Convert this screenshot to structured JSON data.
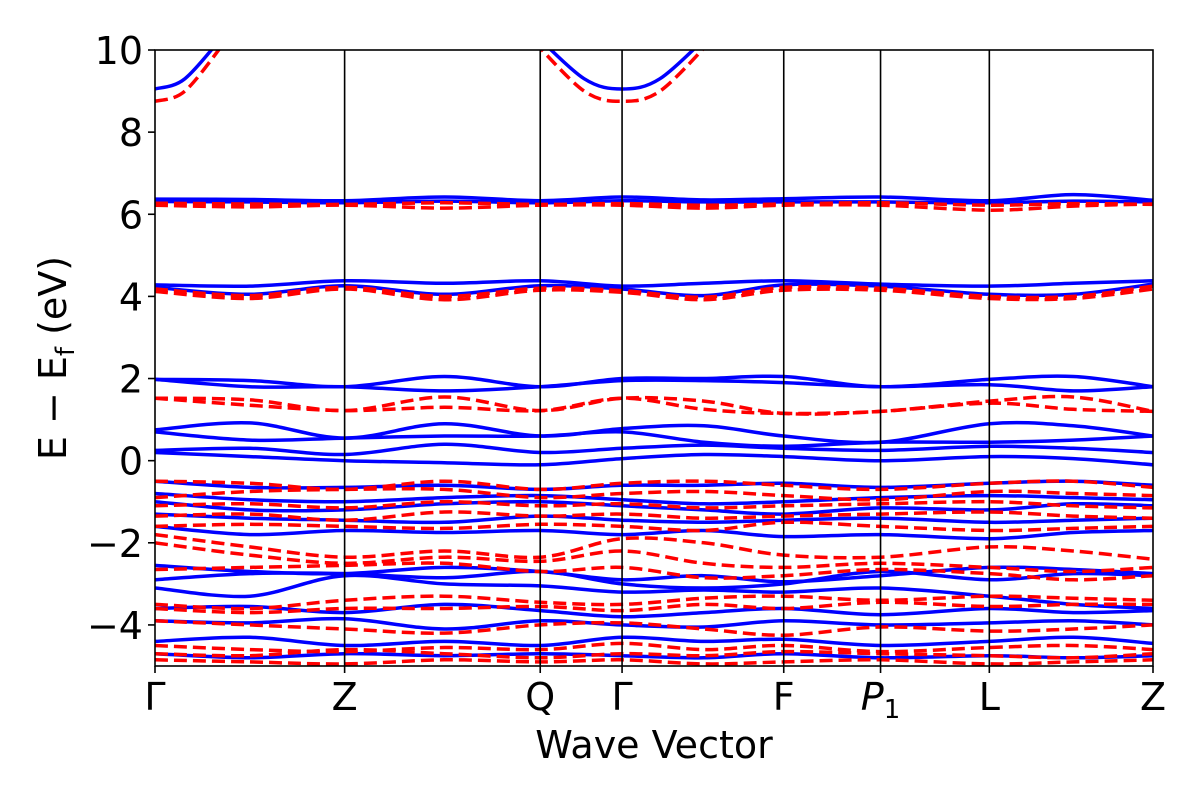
{
  "chart_data": {
    "type": "line",
    "title": "",
    "xlabel": "Wave Vector",
    "ylabel_parts": {
      "main": "E − E",
      "sub": "f",
      "unit": " (eV)"
    },
    "ylim": [
      -5,
      10
    ],
    "yticks": [
      10,
      8,
      6,
      4,
      2,
      0,
      -2,
      -4
    ],
    "ytick_labels": [
      "10",
      "8",
      "6",
      "4",
      "2",
      "0",
      "−2",
      "−4"
    ],
    "xlim": [
      0,
      1
    ],
    "kpoints": [
      {
        "label": "Γ",
        "x": 0.0
      },
      {
        "label": "Z",
        "x": 0.19
      },
      {
        "label": "Q",
        "x": 0.386
      },
      {
        "label": "Γ",
        "x": 0.468
      },
      {
        "label": "F",
        "x": 0.63
      },
      {
        "label": "P",
        "sub": "1",
        "italic": true,
        "x": 0.727
      },
      {
        "label": "L",
        "x": 0.836
      },
      {
        "label": "Z",
        "x": 1.0
      }
    ],
    "grid": false,
    "legend": "none",
    "styles": {
      "spin_up": {
        "color": "#0000ff",
        "dash": "solid"
      },
      "spin_down": {
        "color": "#ff0000",
        "dash": "dashed"
      }
    },
    "series": [
      {
        "style": "spin_up",
        "y": [
          9.05,
          9.3,
          10.4
        ]
      },
      {
        "style": "spin_down",
        "y": [
          8.75,
          9.0,
          10.2
        ]
      },
      {
        "style": "spin_up",
        "y": [
          10.4,
          9.3,
          9.05,
          9.3,
          10.4
        ]
      },
      {
        "style": "spin_down",
        "y": [
          10.2,
          9.0,
          8.75,
          9.0,
          10.2
        ]
      },
      {
        "style": "spin_up",
        "y": [
          6.37,
          6.36,
          6.33,
          6.42,
          6.33,
          6.42,
          6.35,
          6.38,
          6.42,
          6.33,
          6.48,
          6.34
        ]
      },
      {
        "style": "spin_up",
        "y": [
          6.31,
          6.3,
          6.28,
          6.32,
          6.28,
          6.33,
          6.3,
          6.3,
          6.3,
          6.28,
          6.32,
          6.3
        ]
      },
      {
        "style": "spin_down",
        "y": [
          6.27,
          6.25,
          6.24,
          6.28,
          6.24,
          6.26,
          6.22,
          6.25,
          6.28,
          6.22,
          6.26,
          6.24
        ]
      },
      {
        "style": "spin_down",
        "y": [
          6.22,
          6.18,
          6.22,
          6.15,
          6.22,
          6.22,
          6.15,
          6.22,
          6.22,
          6.1,
          6.2,
          6.25
        ]
      },
      {
        "style": "spin_up",
        "y": [
          4.28,
          4.25,
          4.38,
          4.32,
          4.38,
          4.25,
          4.32,
          4.38,
          4.3,
          4.25,
          4.32,
          4.38
        ]
      },
      {
        "style": "spin_up",
        "y": [
          4.22,
          4.05,
          4.26,
          4.05,
          4.26,
          4.18,
          4.02,
          4.28,
          4.25,
          4.05,
          4.05,
          4.3
        ]
      },
      {
        "style": "spin_down",
        "y": [
          4.18,
          4.02,
          4.22,
          4.0,
          4.2,
          4.14,
          3.98,
          4.22,
          4.2,
          4.0,
          4.0,
          4.25
        ]
      },
      {
        "style": "spin_down",
        "y": [
          4.12,
          3.95,
          4.18,
          3.92,
          4.15,
          4.1,
          3.92,
          4.15,
          4.15,
          3.95,
          3.95,
          4.18
        ]
      },
      {
        "style": "spin_up",
        "y": [
          1.98,
          1.95,
          1.8,
          2.05,
          1.8,
          2.0,
          2.0,
          2.05,
          1.8,
          1.98,
          2.05,
          1.8
        ]
      },
      {
        "style": "spin_up",
        "y": [
          1.98,
          1.8,
          1.8,
          1.7,
          1.8,
          1.95,
          1.95,
          1.9,
          1.8,
          1.85,
          1.7,
          1.8
        ]
      },
      {
        "style": "spin_down",
        "y": [
          1.52,
          1.48,
          1.22,
          1.55,
          1.22,
          1.52,
          1.45,
          1.15,
          1.2,
          1.45,
          1.55,
          1.2
        ]
      },
      {
        "style": "spin_down",
        "y": [
          1.52,
          1.35,
          1.22,
          1.3,
          1.22,
          1.52,
          1.25,
          1.15,
          1.2,
          1.4,
          1.25,
          1.2
        ]
      },
      {
        "style": "spin_up",
        "y": [
          0.75,
          0.92,
          0.55,
          0.9,
          0.6,
          0.78,
          0.85,
          0.6,
          0.45,
          0.9,
          0.85,
          0.6
        ]
      },
      {
        "style": "spin_up",
        "y": [
          0.7,
          0.5,
          0.55,
          0.6,
          0.6,
          0.7,
          0.45,
          0.35,
          0.45,
          0.45,
          0.5,
          0.6
        ]
      },
      {
        "style": "spin_up",
        "y": [
          0.25,
          0.3,
          0.15,
          0.4,
          0.2,
          0.3,
          0.38,
          0.3,
          0.25,
          0.35,
          0.3,
          0.2
        ]
      },
      {
        "style": "spin_up",
        "y": [
          0.2,
          0.1,
          0.0,
          -0.05,
          -0.1,
          0.05,
          0.15,
          0.1,
          0.0,
          0.1,
          0.05,
          -0.1
        ]
      },
      {
        "style": "spin_up",
        "y": [
          -0.5,
          -0.65,
          -0.65,
          -0.6,
          -0.7,
          -0.6,
          -0.6,
          -0.55,
          -0.65,
          -0.55,
          -0.5,
          -0.6
        ]
      },
      {
        "style": "spin_up",
        "y": [
          -0.8,
          -0.95,
          -1.0,
          -0.9,
          -0.85,
          -0.95,
          -1.05,
          -1.0,
          -0.9,
          -0.85,
          -0.9,
          -0.95
        ]
      },
      {
        "style": "spin_up",
        "y": [
          -1.0,
          -1.2,
          -1.2,
          -1.05,
          -1.0,
          -1.1,
          -1.2,
          -1.3,
          -1.15,
          -1.2,
          -1.05,
          -1.1
        ]
      },
      {
        "style": "spin_up",
        "y": [
          -1.3,
          -1.4,
          -1.45,
          -1.5,
          -1.35,
          -1.45,
          -1.5,
          -1.45,
          -1.4,
          -1.5,
          -1.45,
          -1.4
        ]
      },
      {
        "style": "spin_up",
        "y": [
          -1.6,
          -1.8,
          -1.7,
          -1.75,
          -1.7,
          -1.8,
          -1.7,
          -1.85,
          -1.8,
          -1.9,
          -1.75,
          -1.7
        ]
      },
      {
        "style": "spin_up",
        "y": [
          -2.55,
          -2.7,
          -2.75,
          -2.6,
          -2.7,
          -2.9,
          -2.8,
          -2.95,
          -2.8,
          -2.6,
          -2.65,
          -2.75
        ]
      },
      {
        "style": "spin_up",
        "y": [
          -2.9,
          -2.75,
          -2.75,
          -2.85,
          -2.7,
          -3.0,
          -3.1,
          -3.0,
          -2.7,
          -2.9,
          -2.75,
          -2.8
        ]
      },
      {
        "style": "spin_up",
        "y": [
          -3.1,
          -3.3,
          -2.8,
          -3.0,
          -3.05,
          -3.2,
          -3.15,
          -3.2,
          -3.1,
          -3.3,
          -3.5,
          -3.6
        ]
      },
      {
        "style": "spin_up",
        "y": [
          -3.6,
          -3.55,
          -3.7,
          -3.5,
          -3.65,
          -3.8,
          -3.7,
          -3.6,
          -3.75,
          -3.6,
          -3.7,
          -3.65
        ]
      },
      {
        "style": "spin_up",
        "y": [
          -3.9,
          -3.95,
          -3.85,
          -4.1,
          -3.9,
          -4.0,
          -4.05,
          -3.9,
          -4.0,
          -3.95,
          -3.9,
          -4.0
        ]
      },
      {
        "style": "spin_up",
        "y": [
          -4.4,
          -4.3,
          -4.5,
          -4.4,
          -4.5,
          -4.3,
          -4.4,
          -4.35,
          -4.5,
          -4.4,
          -4.3,
          -4.45
        ]
      },
      {
        "style": "spin_up",
        "y": [
          -4.7,
          -4.8,
          -4.7,
          -4.75,
          -4.7,
          -4.75,
          -4.8,
          -4.7,
          -4.8,
          -4.75,
          -4.8,
          -4.75
        ]
      },
      {
        "style": "spin_down",
        "y": [
          -0.5,
          -0.55,
          -0.7,
          -0.5,
          -0.7,
          -0.55,
          -0.5,
          -0.6,
          -0.7,
          -0.55,
          -0.5,
          -0.65
        ]
      },
      {
        "style": "spin_down",
        "y": [
          -0.9,
          -0.75,
          -0.7,
          -0.7,
          -0.9,
          -0.8,
          -0.75,
          -0.85,
          -0.95,
          -0.75,
          -0.8,
          -0.85
        ]
      },
      {
        "style": "spin_down",
        "y": [
          -1.1,
          -1.05,
          -1.15,
          -1.0,
          -1.1,
          -1.05,
          -1.15,
          -1.1,
          -1.05,
          -1.0,
          -1.1,
          -1.15
        ]
      },
      {
        "style": "spin_down",
        "y": [
          -1.35,
          -1.3,
          -1.45,
          -1.25,
          -1.35,
          -1.3,
          -1.4,
          -1.35,
          -1.3,
          -1.25,
          -1.35,
          -1.4
        ]
      },
      {
        "style": "spin_down",
        "y": [
          -1.6,
          -1.55,
          -1.6,
          -1.65,
          -1.55,
          -1.6,
          -1.7,
          -1.5,
          -1.6,
          -1.7,
          -1.65,
          -1.6
        ]
      },
      {
        "style": "spin_down",
        "y": [
          -1.8,
          -2.1,
          -2.35,
          -2.2,
          -2.35,
          -1.9,
          -2.0,
          -2.3,
          -2.35,
          -2.1,
          -2.2,
          -2.4
        ]
      },
      {
        "style": "spin_down",
        "y": [
          -2.0,
          -2.3,
          -2.5,
          -2.35,
          -2.45,
          -2.2,
          -2.5,
          -2.6,
          -2.5,
          -2.6,
          -2.7,
          -2.6
        ]
      },
      {
        "style": "spin_down",
        "y": [
          -2.65,
          -2.6,
          -2.55,
          -2.5,
          -2.7,
          -2.6,
          -2.85,
          -2.8,
          -2.65,
          -2.75,
          -2.9,
          -2.8
        ]
      },
      {
        "style": "spin_down",
        "y": [
          -3.5,
          -3.6,
          -3.4,
          -3.3,
          -3.45,
          -3.5,
          -3.35,
          -3.3,
          -3.4,
          -3.3,
          -3.35,
          -3.4
        ]
      },
      {
        "style": "spin_down",
        "y": [
          -3.6,
          -3.7,
          -3.6,
          -3.6,
          -3.55,
          -3.65,
          -3.5,
          -3.6,
          -3.45,
          -3.55,
          -3.5,
          -3.5
        ]
      },
      {
        "style": "spin_down",
        "y": [
          -3.9,
          -4.0,
          -4.1,
          -4.2,
          -4.0,
          -3.95,
          -4.1,
          -4.25,
          -4.05,
          -4.15,
          -4.1,
          -4.0
        ]
      },
      {
        "style": "spin_down",
        "y": [
          -4.5,
          -4.6,
          -4.65,
          -4.55,
          -4.6,
          -4.45,
          -4.6,
          -4.5,
          -4.65,
          -4.55,
          -4.5,
          -4.6
        ]
      },
      {
        "style": "spin_down",
        "y": [
          -4.7,
          -4.75,
          -4.6,
          -4.7,
          -4.8,
          -4.7,
          -4.75,
          -4.65,
          -4.7,
          -4.75,
          -4.8,
          -4.7
        ]
      },
      {
        "style": "spin_down",
        "y": [
          -4.85,
          -4.9,
          -4.95,
          -4.85,
          -4.9,
          -4.85,
          -4.95,
          -4.9,
          -4.85,
          -4.95,
          -4.9,
          -4.85
        ]
      }
    ]
  }
}
